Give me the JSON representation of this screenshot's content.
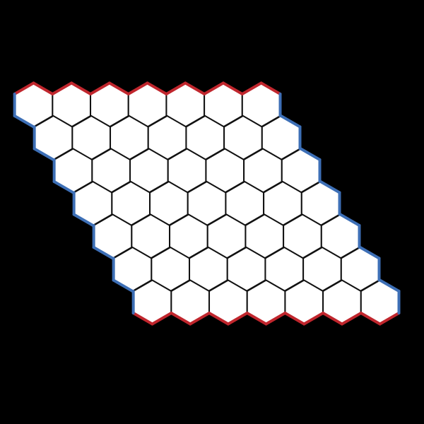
{
  "board": {
    "game": "hex",
    "columns": 7,
    "rows": 7,
    "cell_shape": "hexagon",
    "stones": []
  },
  "colors": {
    "background": "#000000",
    "grid_line": "#111111",
    "cell_fill": "#ffffff",
    "edge_top_bottom": "#c0262d",
    "edge_left_right": "#3d6fb6"
  }
}
